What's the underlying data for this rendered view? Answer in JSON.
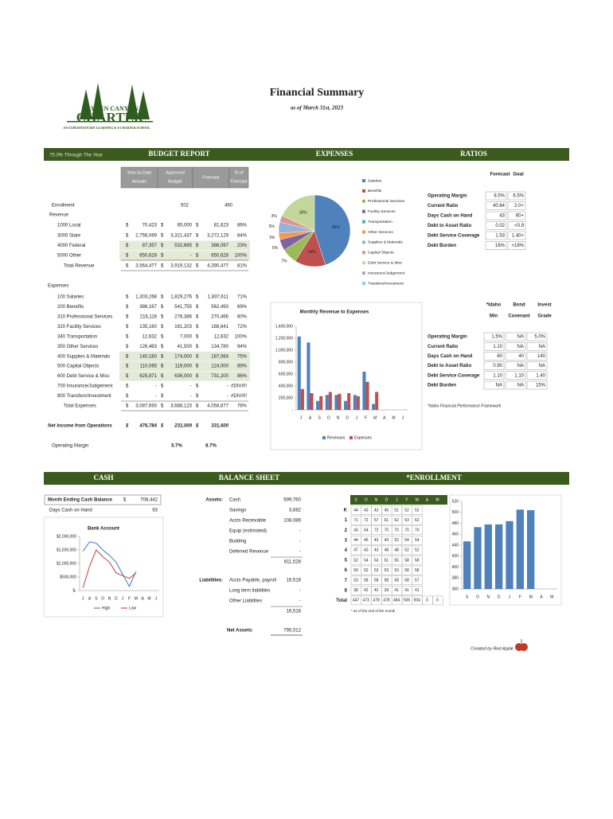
{
  "header": {
    "logo_top": "HAYDEN CANYON",
    "logo_main": "CHARTER",
    "tagline": "AN EXPEDITIONARY LEARNING K-8 CHARTER SCHOOL",
    "title": "Financial Summary",
    "subtitle": "as of March 31st, 2023"
  },
  "bar1": {
    "progress": "75.0% Through The Year",
    "budget": "BUDGET REPORT",
    "expenses": "EXPENSES",
    "ratios": "RATIOS"
  },
  "bar2": {
    "cash": "CASH",
    "balance": "BALANCE SHEET",
    "enrollment": "*ENROLLMENT"
  },
  "budget": {
    "currency": "$",
    "columns": [
      [
        "Year-to-Date",
        "Actuals"
      ],
      [
        "Approved",
        "Budget"
      ],
      [
        "Forecast"
      ],
      [
        "% of",
        "Forecast"
      ]
    ],
    "enrollment": [
      "Enrollment",
      "502",
      "460"
    ],
    "revenue_label": "Revenue",
    "revenue": [
      [
        "1000 Local",
        "70,423",
        "65,000",
        "81,623",
        "86%"
      ],
      [
        "3000 State",
        "2,756,069",
        "3,321,437",
        "3,272,129",
        "84%"
      ],
      [
        "4000 Federal",
        "87,357",
        "532,695",
        "386,097",
        "23%"
      ],
      [
        "5000 Other",
        "650,628",
        "-",
        "650,628",
        "100%"
      ]
    ],
    "total_revenue": [
      "Total Revenue",
      "3,564,477",
      "3,919,132",
      "4,390,477",
      "81%"
    ],
    "expenses_label": "Expenses",
    "expenses": [
      [
        "100 Salaries",
        "1,303,268",
        "1,829,276",
        "1,837,611",
        "71%"
      ],
      [
        "200 Benefits",
        "386,167",
        "541,755",
        "562,493",
        "69%"
      ],
      [
        "310 Professional Services",
        "216,116",
        "278,386",
        "270,466",
        "80%"
      ],
      [
        "320 Facility Services",
        "135,160",
        "161,203",
        "188,641",
        "72%"
      ],
      [
        "340 Transportation",
        "12,632",
        "7,000",
        "12,632",
        "100%"
      ],
      [
        "350 Other Services",
        "126,483",
        "41,500",
        "134,780",
        "94%"
      ],
      [
        "400 Supplies & Materials",
        "140,180",
        "174,000",
        "187,064",
        "75%"
      ],
      [
        "500 Capital Objects",
        "110,065",
        "119,000",
        "124,000",
        "89%"
      ],
      [
        "600 Debt Service & Misc",
        "625,871",
        "636,000",
        "731,200",
        "86%"
      ],
      [
        "700 Insurance/Judgement",
        "-",
        "-",
        "-",
        "#DIV/0!"
      ],
      [
        "800 Transfers/Investment",
        "-",
        "-",
        "-",
        "#DIV/0!"
      ]
    ],
    "total_expenses": [
      "Total Expenses",
      "3,087,693",
      "3,688,123",
      "4,058,877",
      "76%"
    ],
    "net_income": [
      "Net Income from Operations",
      "476,784",
      "231,009",
      "331,600"
    ],
    "operating_margin": [
      "Operating Margin",
      "5.7%",
      "8.7%"
    ]
  },
  "ratios": {
    "columns": [
      "Forecast",
      "Goal"
    ],
    "rows": [
      [
        "Operating Margin",
        "8.5%",
        "6.5%"
      ],
      [
        "Current Ratio",
        "40.84",
        "2.0+"
      ],
      [
        "Days Cash on Hand",
        "43",
        "60+"
      ],
      [
        "Debt to Asset Ratio",
        "0.02",
        "<0.9"
      ],
      [
        "Debt Service Coverage",
        "1.53",
        "1.40+"
      ],
      [
        "Debt Burden",
        "16%",
        "<18%"
      ]
    ]
  },
  "benchmarks": {
    "columns": [
      [
        "*Idaho",
        "Min"
      ],
      [
        "Bond",
        "Covenant"
      ],
      [
        "Invest",
        "Grade"
      ]
    ],
    "rows": [
      [
        "Operating Margin",
        "1.5%",
        "NA",
        "5.0%"
      ],
      [
        "Current Ratio",
        "1.10",
        "NA",
        "NA"
      ],
      [
        "Days Cash on Hand",
        "60",
        "40",
        "140"
      ],
      [
        "Debt to Asset Ratio",
        "0.90",
        "NA",
        "NA"
      ],
      [
        "Debt Service Coverage",
        "1.10",
        "1.10",
        "1.40"
      ],
      [
        "Debt Burden",
        "NA",
        "NA",
        "15%"
      ]
    ],
    "footnote": "*Idaho Financial Performance Framework"
  },
  "cash": {
    "rows": [
      [
        "Month Ending Cash Balance",
        "$",
        "708,442"
      ],
      [
        "Days Cash on Hand",
        "63"
      ]
    ]
  },
  "balance_sheet": {
    "assets_label": "Assets:",
    "assets": [
      [
        "Cash",
        "699,760"
      ],
      [
        "Savings",
        "3,682"
      ],
      [
        "Accts Receivable",
        "108,086"
      ],
      [
        "Equip (estimated)",
        "-"
      ],
      [
        "Building",
        "-"
      ],
      [
        "Deferred Revenue",
        "-"
      ]
    ],
    "assets_total": "811,528",
    "liabilities_label": "Liabilities:",
    "liabilities": [
      [
        "Accts Payable, payroll",
        "16,516"
      ],
      [
        "Long term liabilities",
        "-"
      ],
      [
        "Other Liabilities",
        "-"
      ]
    ],
    "liabilities_total": "16,516",
    "net_label": "Net Assets:",
    "net_value": "795,012"
  },
  "enrollment_table": {
    "columns": [
      "S",
      "O",
      "N",
      "D",
      "J",
      "F",
      "M",
      "A",
      "M"
    ],
    "rows": [
      [
        "K",
        "44",
        "43",
        "43",
        "45",
        "51",
        "52",
        "52"
      ],
      [
        "1",
        "71",
        "72",
        "57",
        "61",
        "62",
        "63",
        "62"
      ],
      [
        "2",
        "43",
        "54",
        "72",
        "70",
        "70",
        "70",
        "70"
      ],
      [
        "3",
        "44",
        "45",
        "43",
        "43",
        "52",
        "54",
        "54"
      ],
      [
        "4",
        "47",
        "43",
        "43",
        "48",
        "48",
        "52",
        "52"
      ],
      [
        "5",
        "52",
        "54",
        "53",
        "51",
        "55",
        "58",
        "58"
      ],
      [
        "6",
        "50",
        "52",
        "53",
        "53",
        "53",
        "58",
        "58"
      ],
      [
        "7",
        "53",
        "58",
        "58",
        "58",
        "58",
        "58",
        "57"
      ],
      [
        "8",
        "38",
        "42",
        "42",
        "39",
        "41",
        "41",
        "41"
      ],
      [
        "Total",
        "447",
        "473",
        "478",
        "478",
        "484",
        "505",
        "504",
        "0",
        "0"
      ]
    ],
    "footnote": "* as of the end of the month"
  },
  "credit": "Created by Red Apple",
  "chart_data": [
    {
      "type": "pie",
      "categories": [
        "Salaries",
        "Benefits",
        "Professional Services",
        "Facility Services",
        "Transportation",
        "Other Services",
        "Supplies & Materials",
        "Capital Objects",
        "Debt Service & Misc",
        "Insurance/Judgement",
        "Transfers/Investment"
      ],
      "values": [
        45,
        14,
        7,
        5,
        0,
        3,
        5,
        3,
        18,
        0,
        0
      ],
      "value_labels": [
        "45%",
        "14%",
        "7%",
        "5%",
        null,
        "3%",
        "5%",
        "3%",
        "18%",
        null,
        null
      ],
      "colors": [
        "#4f81bd",
        "#c0504d",
        "#9bbb59",
        "#8064a2",
        "#4bacc6",
        "#f79646",
        "#95b3d7",
        "#d99694",
        "#c3d69b",
        "#b3a2c7",
        "#93cddd"
      ]
    },
    {
      "type": "bar",
      "title": "Monthly Revenue to Expenses",
      "categories": [
        "J",
        "A",
        "S",
        "O",
        "N",
        "D",
        "J",
        "F",
        "M",
        "A",
        "M",
        "J"
      ],
      "series": [
        {
          "name": "Revenues",
          "color": "#4f81bd",
          "values": [
            1230000,
            1130000,
            150000,
            250000,
            250000,
            150000,
            250000,
            640000,
            100000,
            null,
            null,
            null
          ]
        },
        {
          "name": "Expenses",
          "color": "#c0504d",
          "values": [
            350000,
            280000,
            230000,
            300000,
            270000,
            280000,
            230000,
            470000,
            300000,
            null,
            null,
            null
          ]
        }
      ],
      "ylim": [
        0,
        1400000
      ],
      "yticks": [
        {
          "value": 0,
          "label": "-"
        },
        {
          "value": 200000,
          "label": "200,000"
        },
        {
          "value": 400000,
          "label": "400,000"
        },
        {
          "value": 600000,
          "label": "600,000"
        },
        {
          "value": 800000,
          "label": "800,000"
        },
        {
          "value": 1000000,
          "label": "1,000,000"
        },
        {
          "value": 1200000,
          "label": "1,200,000"
        },
        {
          "value": 1400000,
          "label": "1,400,000"
        }
      ]
    },
    {
      "type": "line",
      "title": "Bank Account",
      "categories": [
        "J",
        "A",
        "S",
        "O",
        "N",
        "D",
        "J",
        "F",
        "M",
        "A",
        "M",
        "J"
      ],
      "series": [
        {
          "name": "High",
          "color": "#4f81bd",
          "values": [
            1450000,
            1800000,
            1750000,
            1500000,
            1300000,
            1050000,
            600000,
            150000,
            700000,
            null,
            null,
            null
          ]
        },
        {
          "name": "Low",
          "color": "#c0504d",
          "values": [
            100000,
            900000,
            1500000,
            1250000,
            1050000,
            650000,
            550000,
            450000,
            650000,
            null,
            null,
            null
          ]
        }
      ],
      "ylim": [
        0,
        2000000
      ],
      "yticks": [
        {
          "value": 0,
          "label": "$-"
        },
        {
          "value": 500000,
          "label": "$500,000"
        },
        {
          "value": 1000000,
          "label": "$1,000,000"
        },
        {
          "value": 1500000,
          "label": "$1,500,000"
        },
        {
          "value": 2000000,
          "label": "$2,000,000"
        }
      ]
    },
    {
      "type": "bar",
      "categories": [
        "S",
        "O",
        "N",
        "D",
        "J",
        "F",
        "M",
        "A",
        "M"
      ],
      "series": [
        {
          "name": "Enrollment",
          "color": "#4f81bd",
          "values": [
            447,
            473,
            478,
            478,
            484,
            505,
            504,
            null,
            null
          ]
        }
      ],
      "ylim": [
        360,
        520
      ],
      "yticks": [
        360,
        380,
        400,
        420,
        440,
        460,
        480,
        500,
        520
      ]
    }
  ]
}
